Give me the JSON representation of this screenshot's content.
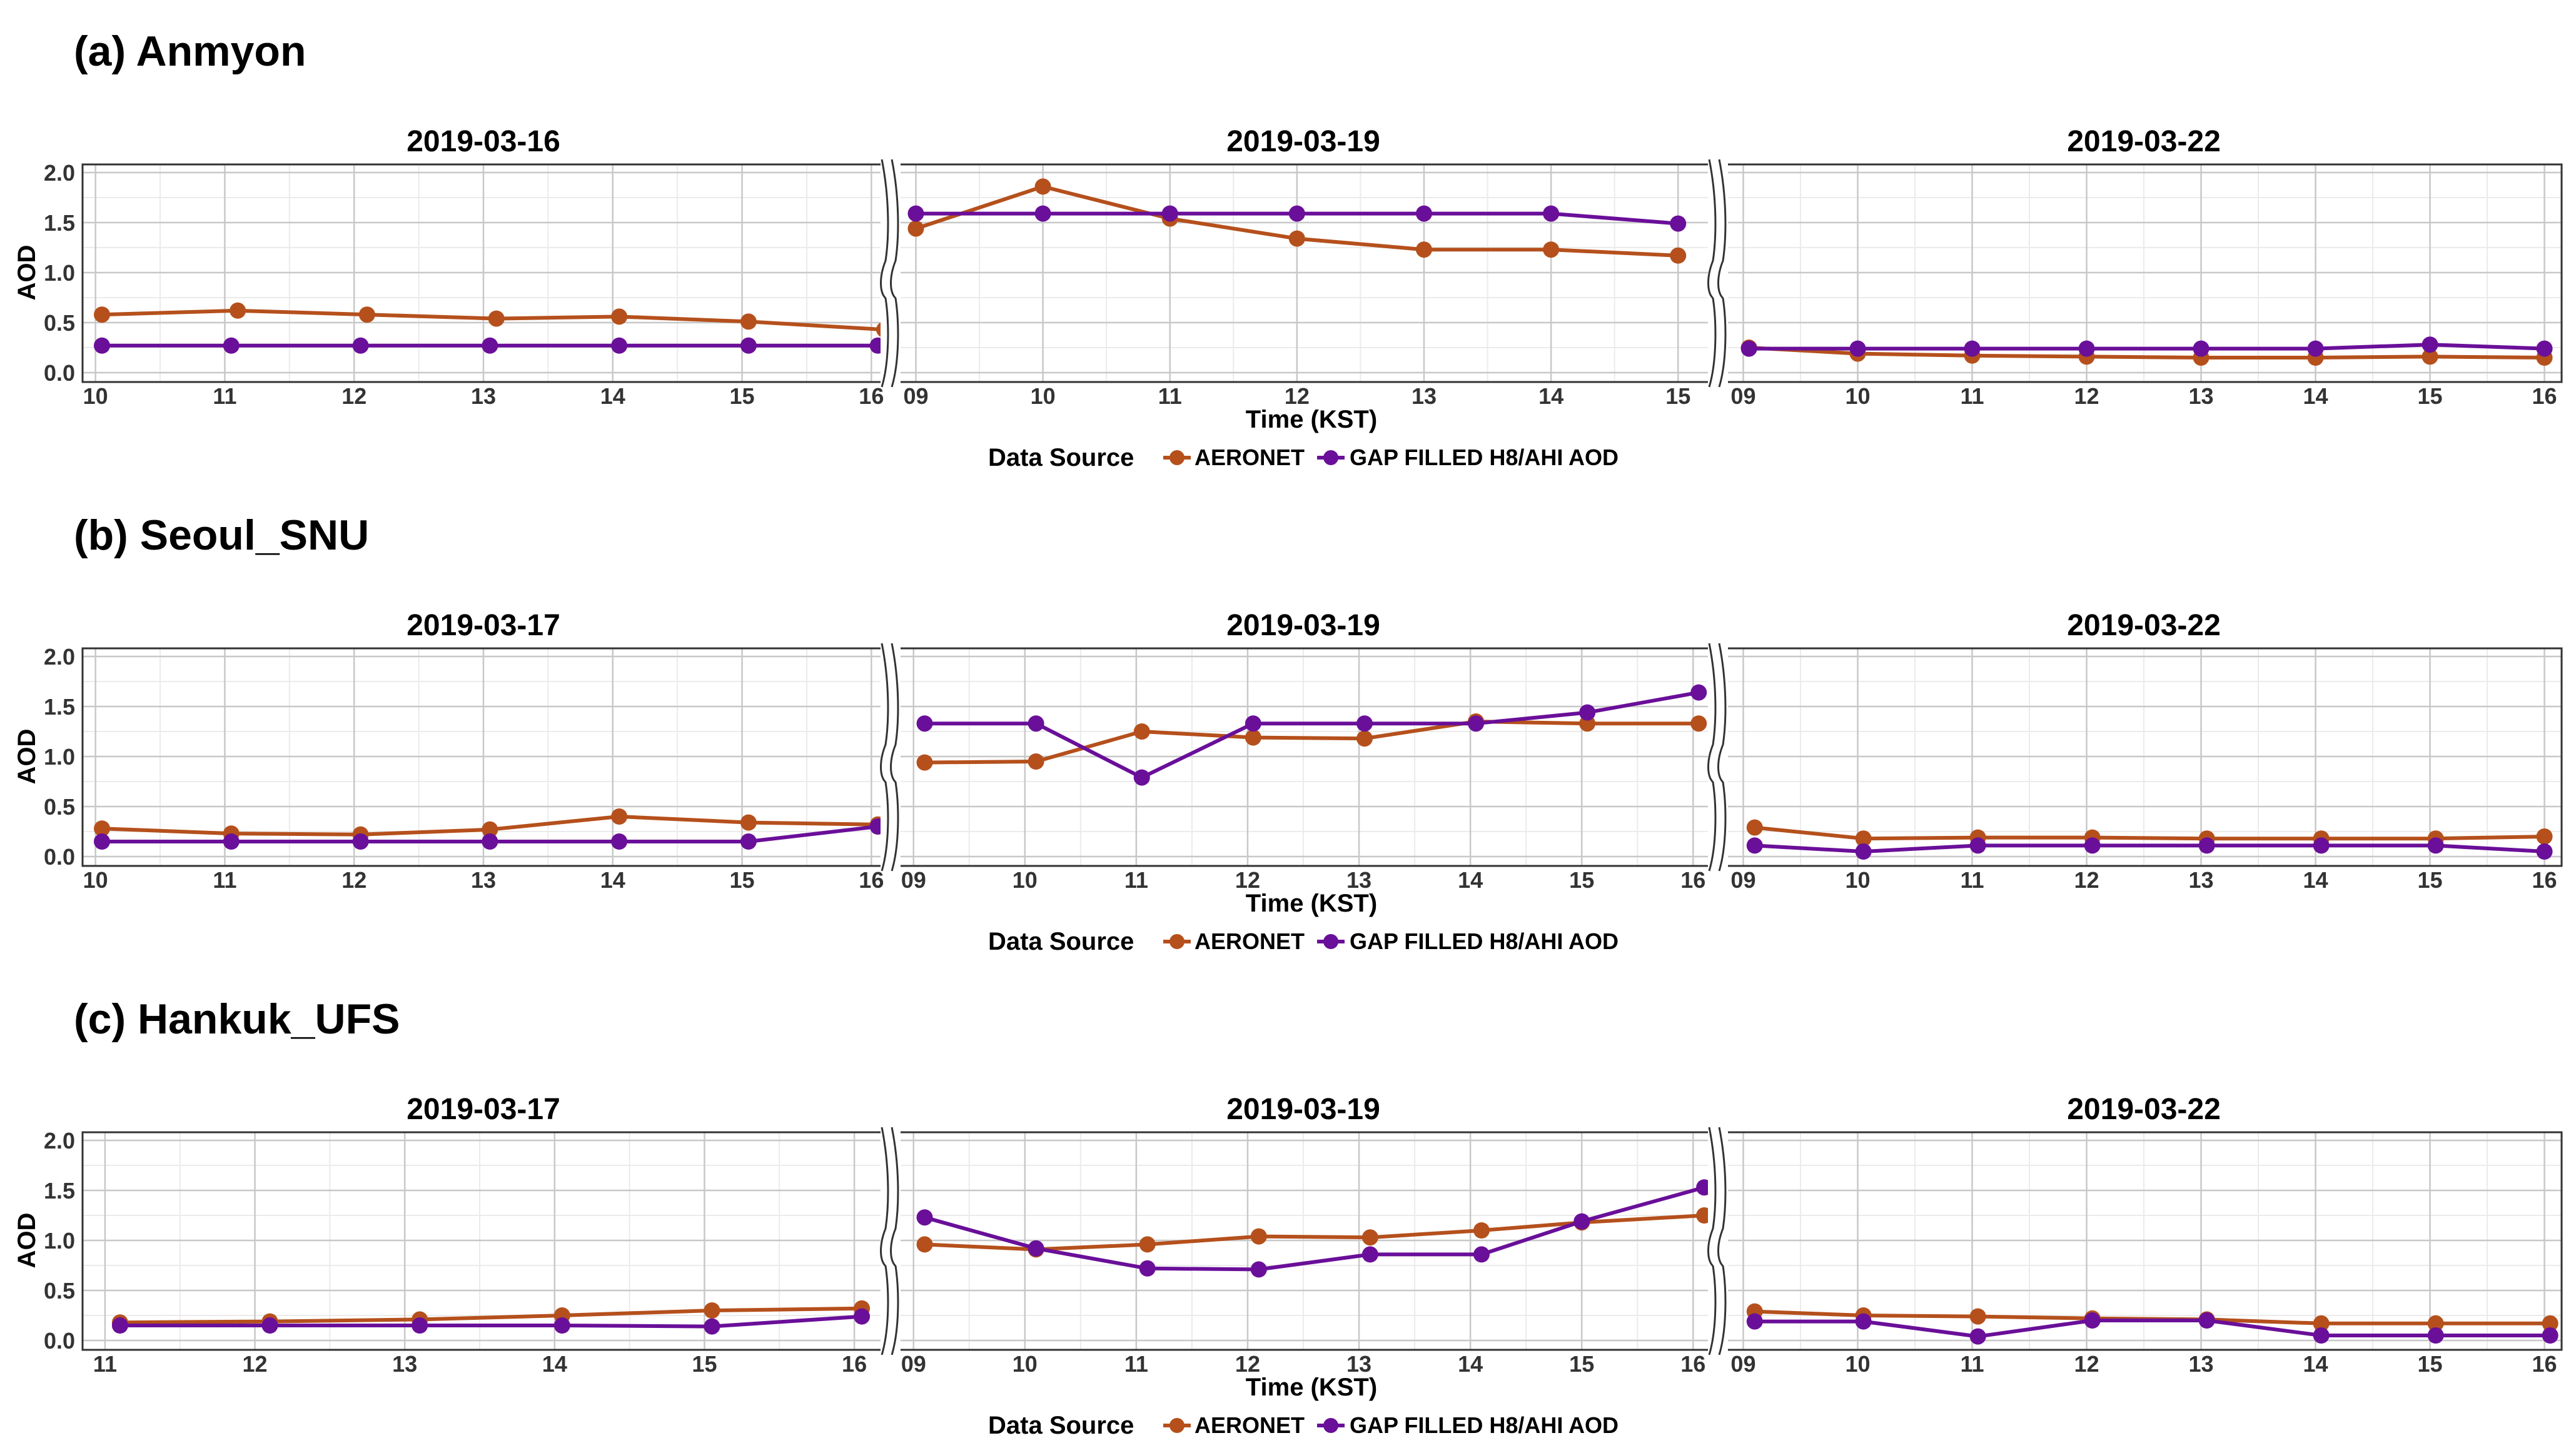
{
  "chart_data": [
    {
      "type": "line",
      "title": "(a) Anmyon",
      "ylabel": "AOD",
      "xlabel": "Time (KST)",
      "ylim": [
        0,
        2.0
      ],
      "yticks": [
        "0.0",
        "0.5",
        "1.0",
        "1.5",
        "2.0"
      ],
      "legend": {
        "title": "Data Source",
        "position": "bottom",
        "entries": [
          "AERONET",
          "GAP FILLED H8/AHI AOD"
        ]
      },
      "panels": [
        {
          "date": "2019-03-16",
          "x_range": [
            9.9,
            16.1
          ],
          "x": [
            "10",
            "11",
            "12",
            "13",
            "14",
            "15",
            "16"
          ],
          "series": [
            {
              "name": "AERONET",
              "x": [
                10.05,
                11.1,
                12.1,
                13.1,
                14.05,
                15.05,
                16.1
              ],
              "values": [
                0.58,
                0.62,
                0.58,
                0.54,
                0.56,
                0.51,
                0.43
              ]
            },
            {
              "name": "GAP FILLED H8/AHI AOD",
              "x": [
                10.05,
                11.05,
                12.05,
                13.05,
                14.05,
                15.05,
                16.05
              ],
              "values": [
                0.27,
                0.27,
                0.27,
                0.27,
                0.27,
                0.27,
                0.27
              ]
            }
          ]
        },
        {
          "date": "2019-03-19",
          "x_range": [
            8.85,
            15.25
          ],
          "x": [
            "09",
            "10",
            "11",
            "12",
            "13",
            "14",
            "15"
          ],
          "series": [
            {
              "name": "AERONET",
              "x": [
                9.0,
                10.0,
                11.0,
                12.0,
                13.0,
                14.0,
                15.0
              ],
              "values": [
                1.44,
                1.86,
                1.54,
                1.34,
                1.23,
                1.23,
                1.17
              ]
            },
            {
              "name": "GAP FILLED H8/AHI AOD",
              "x": [
                9.0,
                10.0,
                11.0,
                12.0,
                13.0,
                14.0,
                15.0
              ],
              "values": [
                1.59,
                1.59,
                1.59,
                1.59,
                1.59,
                1.59,
                1.49
              ]
            }
          ]
        },
        {
          "date": "2019-03-22",
          "x_range": [
            8.85,
            16.15
          ],
          "x": [
            "09",
            "10",
            "11",
            "12",
            "13",
            "14",
            "15",
            "16"
          ],
          "series": [
            {
              "name": "AERONET",
              "x": [
                9.05,
                10.0,
                11.0,
                12.0,
                13.0,
                14.0,
                15.0,
                16.0
              ],
              "values": [
                0.25,
                0.19,
                0.17,
                0.16,
                0.15,
                0.15,
                0.16,
                0.15
              ]
            },
            {
              "name": "GAP FILLED H8/AHI AOD",
              "x": [
                9.05,
                10.0,
                11.0,
                12.0,
                13.0,
                14.0,
                15.0,
                16.0
              ],
              "values": [
                0.24,
                0.24,
                0.24,
                0.24,
                0.24,
                0.24,
                0.28,
                0.24
              ]
            }
          ]
        }
      ]
    },
    {
      "type": "line",
      "title": "(b) Seoul_SNU",
      "ylabel": "AOD",
      "xlabel": "Time (KST)",
      "ylim": [
        0,
        2.0
      ],
      "yticks": [
        "0.0",
        "0.5",
        "1.0",
        "1.5",
        "2.0"
      ],
      "legend": {
        "title": "Data Source",
        "position": "bottom",
        "entries": [
          "AERONET",
          "GAP FILLED H8/AHI AOD"
        ]
      },
      "panels": [
        {
          "date": "2019-03-17",
          "x_range": [
            9.9,
            16.1
          ],
          "x": [
            "10",
            "11",
            "12",
            "13",
            "14",
            "15",
            "16"
          ],
          "series": [
            {
              "name": "AERONET",
              "x": [
                10.05,
                11.05,
                12.05,
                13.05,
                14.05,
                15.05,
                16.05
              ],
              "values": [
                0.28,
                0.23,
                0.22,
                0.27,
                0.4,
                0.34,
                0.32
              ]
            },
            {
              "name": "GAP FILLED H8/AHI AOD",
              "x": [
                10.05,
                11.05,
                12.05,
                13.05,
                14.05,
                15.05,
                16.05
              ],
              "values": [
                0.15,
                0.15,
                0.15,
                0.15,
                0.15,
                0.15,
                0.3
              ]
            }
          ]
        },
        {
          "date": "2019-03-19",
          "x_range": [
            8.85,
            16.15
          ],
          "x": [
            "09",
            "10",
            "11",
            "12",
            "13",
            "14",
            "15",
            "16"
          ],
          "series": [
            {
              "name": "AERONET",
              "x": [
                9.1,
                10.1,
                11.05,
                12.05,
                13.05,
                14.05,
                15.05,
                16.05
              ],
              "values": [
                0.94,
                0.95,
                1.25,
                1.19,
                1.18,
                1.35,
                1.33,
                1.33
              ]
            },
            {
              "name": "GAP FILLED H8/AHI AOD",
              "x": [
                9.1,
                10.1,
                11.05,
                12.05,
                13.05,
                14.05,
                15.05,
                16.05
              ],
              "values": [
                1.33,
                1.33,
                0.79,
                1.33,
                1.33,
                1.33,
                1.44,
                1.64
              ]
            }
          ]
        },
        {
          "date": "2019-03-22",
          "x_range": [
            8.85,
            16.15
          ],
          "x": [
            "09",
            "10",
            "11",
            "12",
            "13",
            "14",
            "15",
            "16"
          ],
          "series": [
            {
              "name": "AERONET",
              "x": [
                9.1,
                10.05,
                11.05,
                12.05,
                13.05,
                14.05,
                15.05,
                16.0
              ],
              "values": [
                0.29,
                0.18,
                0.19,
                0.19,
                0.18,
                0.18,
                0.18,
                0.2
              ]
            },
            {
              "name": "GAP FILLED H8/AHI AOD",
              "x": [
                9.1,
                10.05,
                11.05,
                12.05,
                13.05,
                14.05,
                15.05,
                16.0
              ],
              "values": [
                0.11,
                0.05,
                0.11,
                0.11,
                0.11,
                0.11,
                0.11,
                0.05
              ]
            }
          ]
        }
      ]
    },
    {
      "type": "line",
      "title": "(c) Hankuk_UFS",
      "ylabel": "AOD",
      "xlabel": "Time (KST)",
      "ylim": [
        0,
        2.0
      ],
      "yticks": [
        "0.0",
        "0.5",
        "1.0",
        "1.5",
        "2.0"
      ],
      "legend": {
        "title": "Data Source",
        "position": "bottom",
        "entries": [
          "AERONET",
          "GAP FILLED H8/AHI AOD"
        ]
      },
      "panels": [
        {
          "date": "2019-03-17",
          "x_range": [
            10.85,
            16.2
          ],
          "x": [
            "11",
            "12",
            "13",
            "14",
            "15",
            "16"
          ],
          "series": [
            {
              "name": "AERONET",
              "x": [
                11.1,
                12.1,
                13.1,
                14.05,
                15.05,
                16.05
              ],
              "values": [
                0.18,
                0.19,
                0.21,
                0.25,
                0.3,
                0.32
              ]
            },
            {
              "name": "GAP FILLED H8/AHI AOD",
              "x": [
                11.1,
                12.1,
                13.1,
                14.05,
                15.05,
                16.05
              ],
              "values": [
                0.15,
                0.15,
                0.15,
                0.15,
                0.14,
                0.24
              ]
            }
          ]
        },
        {
          "date": "2019-03-19",
          "x_range": [
            8.85,
            16.15
          ],
          "x": [
            "09",
            "10",
            "11",
            "12",
            "13",
            "14",
            "15",
            "16"
          ],
          "series": [
            {
              "name": "AERONET",
              "x": [
                9.1,
                10.1,
                11.1,
                12.1,
                13.1,
                14.1,
                15.0,
                16.1
              ],
              "values": [
                0.96,
                0.91,
                0.96,
                1.04,
                1.03,
                1.1,
                1.18,
                1.25
              ]
            },
            {
              "name": "GAP FILLED H8/AHI AOD",
              "x": [
                9.1,
                10.1,
                11.1,
                12.1,
                13.1,
                14.1,
                15.0,
                16.1
              ],
              "values": [
                1.23,
                0.92,
                0.72,
                0.71,
                0.86,
                0.86,
                1.19,
                1.53
              ]
            }
          ]
        },
        {
          "date": "2019-03-22",
          "x_range": [
            8.85,
            16.15
          ],
          "x": [
            "09",
            "10",
            "11",
            "12",
            "13",
            "14",
            "15",
            "16"
          ],
          "series": [
            {
              "name": "AERONET",
              "x": [
                9.1,
                10.05,
                11.05,
                12.05,
                13.05,
                14.05,
                15.05,
                16.05
              ],
              "values": [
                0.29,
                0.25,
                0.24,
                0.22,
                0.21,
                0.17,
                0.17,
                0.17
              ]
            },
            {
              "name": "GAP FILLED H8/AHI AOD",
              "x": [
                9.1,
                10.05,
                11.05,
                12.05,
                13.05,
                14.05,
                15.05,
                16.05
              ],
              "values": [
                0.19,
                0.19,
                0.04,
                0.2,
                0.2,
                0.05,
                0.05,
                0.05
              ]
            }
          ]
        }
      ]
    }
  ],
  "colors": {
    "AERONET": "#b5501c",
    "GAP FILLED H8/AHI AOD": "#6a0f99",
    "grid_major": "#c8c8c8",
    "grid_minor": "#ebebeb",
    "frame": "#333333"
  }
}
